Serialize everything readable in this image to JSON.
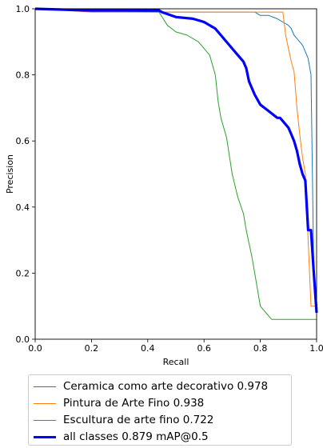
{
  "chart_data": {
    "type": "line",
    "xlabel": "Recall",
    "ylabel": "Precision",
    "xlim": [
      0.0,
      1.0
    ],
    "ylim": [
      0.0,
      1.0
    ],
    "xticks": [
      "0.0",
      "0.2",
      "0.4",
      "0.6",
      "0.8",
      "1.0"
    ],
    "yticks": [
      "0.0",
      "0.2",
      "0.4",
      "0.6",
      "0.8",
      "1.0"
    ],
    "grid": false,
    "legend_position": "bottom",
    "series": [
      {
        "name": "Ceramica como arte decorativo 0.978",
        "color": "#1f77b4",
        "x": [
          0.0,
          0.2,
          0.44,
          0.45,
          0.7,
          0.78,
          0.8,
          0.83,
          0.86,
          0.88,
          0.9,
          0.91,
          0.92,
          0.93,
          0.94,
          0.95,
          0.96,
          0.97,
          0.98,
          0.99,
          1.0
        ],
        "y": [
          1.0,
          1.0,
          1.0,
          0.99,
          0.99,
          0.99,
          0.98,
          0.98,
          0.97,
          0.96,
          0.95,
          0.94,
          0.92,
          0.91,
          0.9,
          0.89,
          0.87,
          0.85,
          0.8,
          0.2,
          0.08
        ]
      },
      {
        "name": "Pintura de Arte Fino 0.938",
        "color": "#ff7f0e",
        "x": [
          0.0,
          0.2,
          0.44,
          0.6,
          0.75,
          0.82,
          0.88,
          0.89,
          0.9,
          0.91,
          0.92,
          0.93,
          0.94,
          0.95,
          0.96,
          0.97,
          0.98,
          1.0
        ],
        "y": [
          1.0,
          0.99,
          0.99,
          0.99,
          0.99,
          0.99,
          0.99,
          0.92,
          0.88,
          0.84,
          0.81,
          0.7,
          0.62,
          0.55,
          0.5,
          0.3,
          0.1,
          0.1
        ]
      },
      {
        "name": "Escultura de arte fino 0.722",
        "color": "#2ca02c",
        "x": [
          0.0,
          0.44,
          0.47,
          0.5,
          0.54,
          0.58,
          0.62,
          0.64,
          0.65,
          0.66,
          0.68,
          0.7,
          0.72,
          0.74,
          0.75,
          0.77,
          0.78,
          0.79,
          0.8,
          0.82,
          0.84,
          1.0
        ],
        "y": [
          1.0,
          0.99,
          0.95,
          0.93,
          0.92,
          0.9,
          0.86,
          0.8,
          0.72,
          0.67,
          0.61,
          0.5,
          0.43,
          0.38,
          0.33,
          0.25,
          0.2,
          0.15,
          0.1,
          0.08,
          0.06,
          0.06
        ]
      },
      {
        "name": "all classes 0.879 mAP@0.5",
        "color": "#0000ff",
        "x": [
          0.0,
          0.2,
          0.44,
          0.45,
          0.5,
          0.56,
          0.6,
          0.64,
          0.66,
          0.7,
          0.72,
          0.74,
          0.75,
          0.76,
          0.78,
          0.8,
          0.83,
          0.86,
          0.87,
          0.88,
          0.9,
          0.91,
          0.92,
          0.93,
          0.94,
          0.95,
          0.96,
          0.97,
          0.98,
          0.99,
          1.0
        ],
        "y": [
          1.0,
          0.995,
          0.995,
          0.99,
          0.975,
          0.97,
          0.96,
          0.94,
          0.92,
          0.88,
          0.86,
          0.84,
          0.82,
          0.78,
          0.74,
          0.71,
          0.69,
          0.67,
          0.67,
          0.66,
          0.64,
          0.62,
          0.6,
          0.57,
          0.53,
          0.5,
          0.48,
          0.33,
          0.33,
          0.2,
          0.08
        ]
      }
    ]
  }
}
